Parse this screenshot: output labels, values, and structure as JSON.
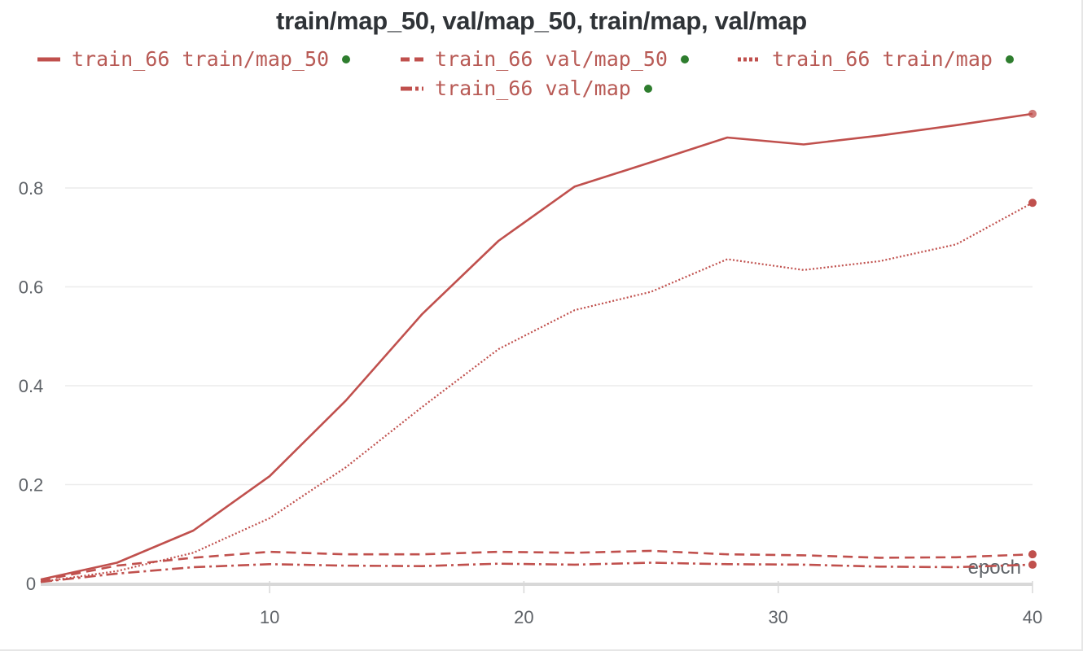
{
  "title": "train/map_50, val/map_50, train/map, val/map",
  "colors": {
    "series": "#c0504d",
    "legend_text": "#b85a55",
    "dot": "#2e7d2e",
    "grid": "#ececec",
    "axis": "#d8d8d8"
  },
  "chart_data": {
    "type": "line",
    "title": "train/map_50, val/map_50, train/map, val/map",
    "xlabel": "epoch",
    "ylabel": "",
    "xlim": [
      1,
      40
    ],
    "ylim": [
      0,
      0.95
    ],
    "x_ticks": [
      10,
      20,
      30,
      40
    ],
    "x_tick_labels": [
      "10",
      "20",
      "30",
      "40"
    ],
    "y_ticks": [
      0,
      0.2,
      0.4,
      0.6,
      0.8
    ],
    "y_tick_labels": [
      "0",
      "0.2",
      "0.4",
      "0.6",
      "0.8"
    ],
    "grid": true,
    "legend_position": "top-center",
    "series": [
      {
        "name": "train_66 train/map_50",
        "style": "solid",
        "x": [
          1,
          4,
          7,
          10,
          13,
          16,
          19,
          22,
          25,
          28,
          31,
          34,
          37,
          40
        ],
        "y": [
          0.008,
          0.042,
          0.107,
          0.217,
          0.37,
          0.545,
          0.693,
          0.803,
          0.852,
          0.902,
          0.888,
          0.906,
          0.927,
          0.95
        ]
      },
      {
        "name": "train_66 val/map_50",
        "style": "dashed",
        "x": [
          1,
          4,
          7,
          10,
          13,
          16,
          19,
          22,
          25,
          28,
          31,
          34,
          37,
          40
        ],
        "y": [
          0.006,
          0.036,
          0.052,
          0.064,
          0.059,
          0.059,
          0.064,
          0.062,
          0.066,
          0.059,
          0.057,
          0.052,
          0.053,
          0.059
        ]
      },
      {
        "name": "train_66 train/map",
        "style": "dotted",
        "x": [
          1,
          4,
          7,
          10,
          13,
          16,
          19,
          22,
          25,
          28,
          31,
          34,
          37,
          40
        ],
        "y": [
          0.003,
          0.025,
          0.062,
          0.132,
          0.235,
          0.357,
          0.474,
          0.553,
          0.59,
          0.656,
          0.634,
          0.652,
          0.686,
          0.77
        ]
      },
      {
        "name": "train_66 val/map",
        "style": "dashdot",
        "x": [
          1,
          4,
          7,
          10,
          13,
          16,
          19,
          22,
          25,
          28,
          31,
          34,
          37,
          40
        ],
        "y": [
          0.003,
          0.02,
          0.033,
          0.039,
          0.036,
          0.035,
          0.04,
          0.038,
          0.042,
          0.039,
          0.038,
          0.034,
          0.033,
          0.038
        ]
      }
    ]
  }
}
